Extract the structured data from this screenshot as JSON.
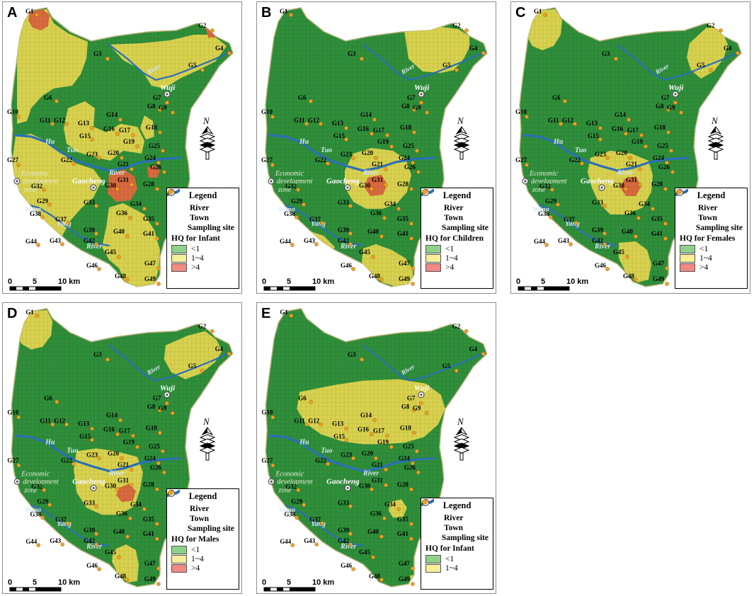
{
  "panels": [
    {
      "letter": "A",
      "hq_title": "HQ  for Infant",
      "classes": [
        {
          "label": "<1",
          "color": "#8fd18a"
        },
        {
          "label": "1~4",
          "color": "#f6ef9a"
        },
        {
          "label": ">4",
          "color": "#f08a84"
        }
      ]
    },
    {
      "letter": "B",
      "hq_title": "HQ  for Children",
      "classes": [
        {
          "label": "<1",
          "color": "#8fd18a"
        },
        {
          "label": "1~4",
          "color": "#f6ef9a"
        },
        {
          "label": ">4",
          "color": "#f08a84"
        }
      ]
    },
    {
      "letter": "C",
      "hq_title": "HQ  for Females",
      "classes": [
        {
          "label": "<1",
          "color": "#8fd18a"
        },
        {
          "label": "1~4",
          "color": "#f6ef9a"
        },
        {
          "label": ">4",
          "color": "#f08a84"
        }
      ]
    },
    {
      "letter": "D",
      "hq_title": "HQ  for Males",
      "classes": [
        {
          "label": "<1",
          "color": "#8fd18a"
        },
        {
          "label": "1~4",
          "color": "#f6ef9a"
        },
        {
          "label": ">4",
          "color": "#f08a84"
        }
      ]
    },
    {
      "letter": "E",
      "hq_title": "HQ  for Infant",
      "classes": [
        {
          "label": "<1",
          "color": "#8fd18a"
        },
        {
          "label": "1~4",
          "color": "#f6ef9a"
        }
      ]
    }
  ],
  "legend": {
    "title": "Legend",
    "river": "River",
    "town": "Town",
    "site": "Sampling site"
  },
  "scale": {
    "t0": "0",
    "t5": "5",
    "t10": "10 km"
  },
  "places": {
    "wuji": "Wuji",
    "gaocheng": "Gaocheng",
    "edz1": "Economic",
    "edz2": "development",
    "edz3": "zone",
    "hutuo1": "Hu",
    "hutuo2": "Tuo",
    "hutuo3": "River",
    "river_upper": "River",
    "wang1": "Wang",
    "wang2": "Yang",
    "wang3": "River",
    "north": "N"
  },
  "sites": [
    "G1",
    "G2",
    "G3",
    "G4",
    "G5",
    "G6",
    "G7",
    "G8",
    "G9",
    "G10",
    "G11",
    "G12",
    "G13",
    "G14",
    "G15",
    "G16",
    "G17",
    "G18",
    "G19",
    "G20",
    "G21",
    "G22",
    "G23",
    "G24",
    "G25",
    "G26",
    "G27",
    "G28",
    "G29",
    "G30",
    "G31",
    "G32",
    "G33",
    "G34",
    "G35",
    "G36",
    "G37",
    "G38",
    "G39",
    "G40",
    "G41",
    "G42",
    "G43",
    "G44",
    "G45",
    "G46",
    "G47",
    "G48",
    "G49"
  ],
  "colors": {
    "green": "#2f8f3a",
    "green_dark": "#1f6e2a",
    "yellow": "#d9d24e",
    "red": "#d96a3e",
    "river": "#2a6fb8",
    "site": "#f0a020"
  }
}
